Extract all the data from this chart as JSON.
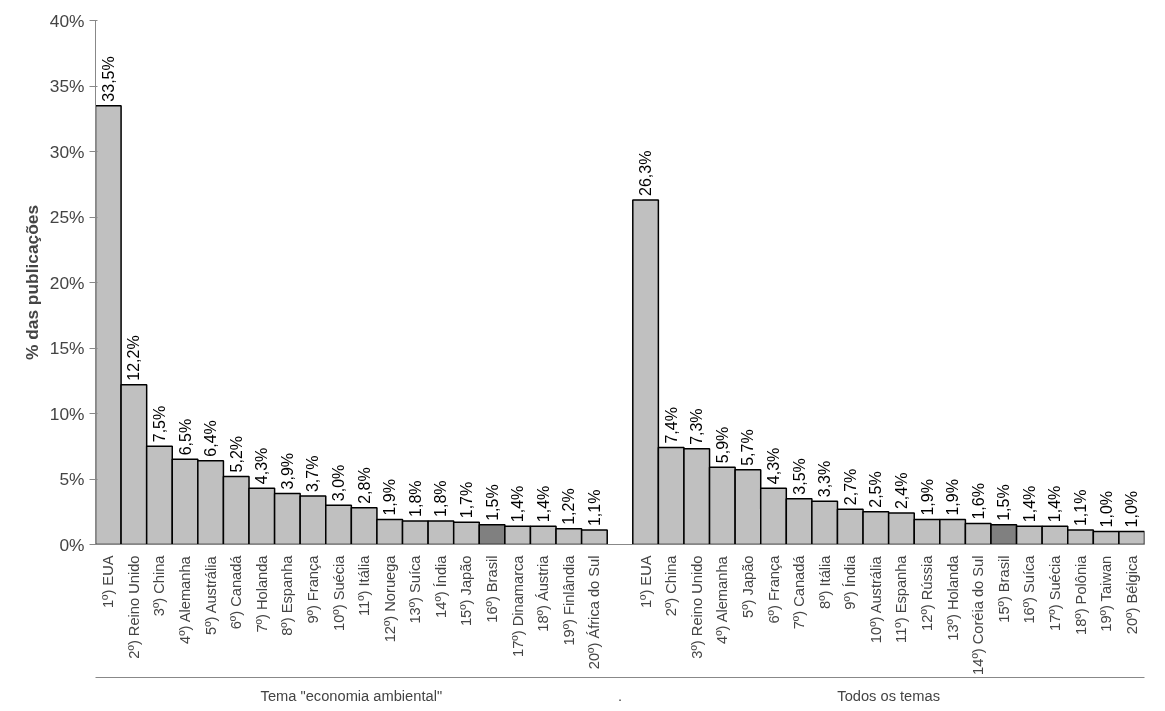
{
  "chart_data": {
    "type": "bar",
    "ylabel": "% das publicações",
    "categories": [
      "1º) EUA",
      "2º) Reino Unido",
      "3º) China",
      "4º) Alemanha",
      "5º) Austrália",
      "6º) Canadá",
      "7º) Holanda",
      "8º) Espanha",
      "9º) França",
      "10º) Suécia",
      "11º) Itália",
      "12º) Noruega",
      "13º) Suíca",
      "14º) Índia",
      "15º) Japão",
      "16º) Brasil",
      "17º) Dinamarca",
      "18º) Áustria",
      "19º) Finlândia",
      "20º) África do Sul",
      null,
      "1º) EUA",
      "2º) China",
      "3º) Reino Unido",
      "4º) Alemanha",
      "5º) Japão",
      "6º) França",
      "7º) Canadá",
      "8º) Itália",
      "9º) Índia",
      "10º) Austrália",
      "11º) Espanha",
      "12º) Rússia",
      "13º) Holanda",
      "14º) Coréia do Sul",
      "15º) Brasil",
      "16º) Suíca",
      "17º) Suécia",
      "18º) Polônia",
      "19º) Taiwan",
      "20º) Bélgica"
    ],
    "values": [
      33.5,
      12.2,
      7.5,
      6.5,
      6.4,
      5.2,
      4.3,
      3.9,
      3.7,
      3.0,
      2.8,
      1.9,
      1.8,
      1.8,
      1.7,
      1.5,
      1.4,
      1.4,
      1.2,
      1.1,
      null,
      26.3,
      7.4,
      7.3,
      5.9,
      5.7,
      4.3,
      3.5,
      3.3,
      2.7,
      2.5,
      2.4,
      1.9,
      1.9,
      1.6,
      1.5,
      1.4,
      1.4,
      1.1,
      1.0,
      1.0
    ],
    "value_labels": [
      "33,5%",
      "12,2%",
      "7,5%",
      "6,5%",
      "6,4%",
      "5,2%",
      "4,3%",
      "3,9%",
      "3,7%",
      "3,0%",
      "2,8%",
      "1,9%",
      "1,8%",
      "1,8%",
      "1,7%",
      "1,5%",
      "1,4%",
      "1,4%",
      "1,2%",
      "1,1%",
      null,
      "26,3%",
      "7,4%",
      "7,3%",
      "5,9%",
      "5,7%",
      "4,3%",
      "3,5%",
      "3,3%",
      "2,7%",
      "2,5%",
      "2,4%",
      "1,9%",
      "1,9%",
      "1,6%",
      "1,5%",
      "1,4%",
      "1,4%",
      "1,1%",
      "1,0%",
      "1,0%"
    ],
    "colors": [
      "#c0c0c0",
      "#c0c0c0",
      "#c0c0c0",
      "#c0c0c0",
      "#c0c0c0",
      "#c0c0c0",
      "#c0c0c0",
      "#c0c0c0",
      "#c0c0c0",
      "#c0c0c0",
      "#c0c0c0",
      "#c0c0c0",
      "#c0c0c0",
      "#c0c0c0",
      "#c0c0c0",
      "#808080",
      "#c0c0c0",
      "#c0c0c0",
      "#c0c0c0",
      "#c0c0c0",
      null,
      "#c0c0c0",
      "#c0c0c0",
      "#c0c0c0",
      "#c0c0c0",
      "#c0c0c0",
      "#c0c0c0",
      "#c0c0c0",
      "#c0c0c0",
      "#c0c0c0",
      "#c0c0c0",
      "#c0c0c0",
      "#c0c0c0",
      "#c0c0c0",
      "#c0c0c0",
      "#808080",
      "#c0c0c0",
      "#c0c0c0",
      "#c0c0c0",
      "#c0c0c0",
      "#c0c0c0"
    ],
    "ylim": [
      0,
      40
    ],
    "yticks": [
      {
        "value": 0,
        "label": "0%"
      },
      {
        "value": 5,
        "label": "5%"
      },
      {
        "value": 10,
        "label": "10%"
      },
      {
        "value": 15,
        "label": "15%"
      },
      {
        "value": 20,
        "label": "20%"
      },
      {
        "value": 25,
        "label": "25%"
      },
      {
        "value": 30,
        "label": "30%"
      },
      {
        "value": 35,
        "label": "35%"
      },
      {
        "value": 40,
        "label": "40%"
      }
    ],
    "annotations": [
      "Tema \"economia ambiental\"",
      ".",
      "Todos os temas"
    ],
    "grid": false
  }
}
